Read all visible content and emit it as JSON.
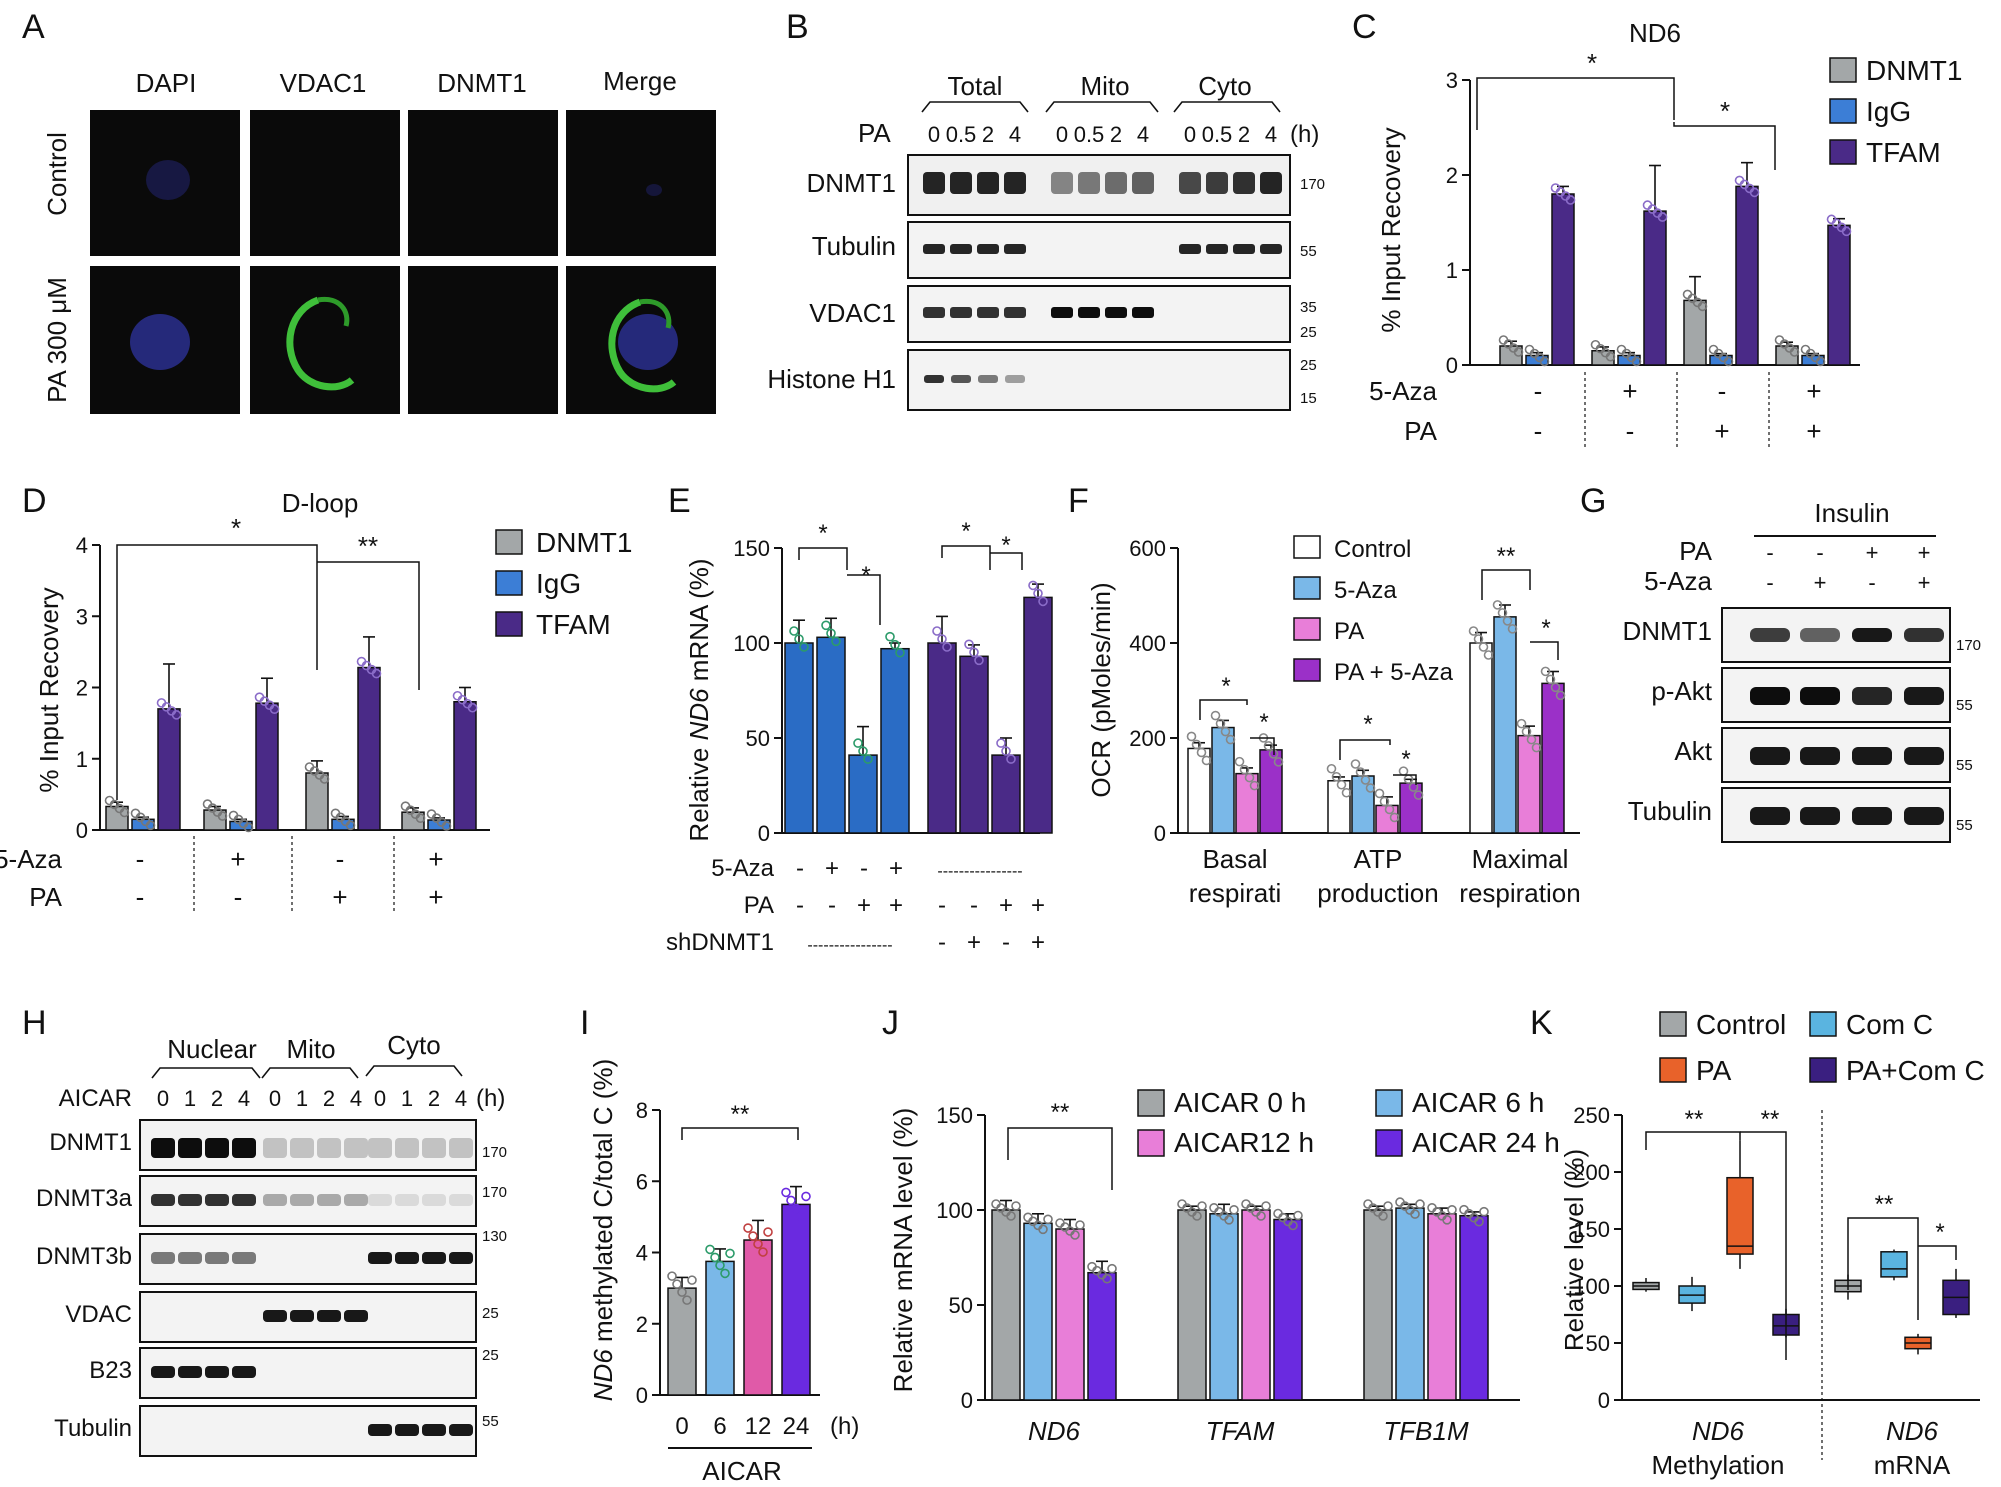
{
  "panels": {
    "A": {
      "label": "A",
      "cols": [
        "DAPI",
        "VDAC1",
        "DNMT1",
        "Merge"
      ],
      "rows": [
        "Control",
        "PA 300 μM"
      ]
    },
    "B": {
      "label": "B",
      "groups": [
        "Total",
        "Mito",
        "Cyto"
      ],
      "pa_label": "PA",
      "time_labels": [
        "0",
        "0.5",
        "2",
        "4"
      ],
      "unit": "(h)",
      "rows": [
        "DNMT1",
        "Tubulin",
        "VDAC1",
        "Histone H1"
      ],
      "markers": [
        "170",
        "55",
        "35",
        "25",
        "25",
        "15"
      ]
    },
    "C": {
      "label": "C",
      "title": "ND6"
    },
    "D": {
      "label": "D",
      "title": "D-loop"
    },
    "E": {
      "label": "E"
    },
    "F": {
      "label": "F"
    },
    "G": {
      "label": "G",
      "header": "Insulin",
      "cond_labels": [
        "PA",
        "5-Aza"
      ],
      "pa_signs": [
        "-",
        "-",
        "+",
        "+"
      ],
      "aza_signs": [
        "-",
        "+",
        "-",
        "+"
      ],
      "rows": [
        "DNMT1",
        "p-Akt",
        "Akt",
        "Tubulin"
      ],
      "markers": [
        "170",
        "55",
        "55",
        "55"
      ]
    },
    "H": {
      "label": "H",
      "groups": [
        "Nuclear",
        "Mito",
        "Cyto"
      ],
      "aicar_label": "AICAR",
      "time_labels": [
        "0",
        "1",
        "2",
        "4"
      ],
      "unit": "(h)",
      "rows": [
        "DNMT1",
        "DNMT3a",
        "DNMT3b",
        "VDAC",
        "B23",
        "Tubulin"
      ],
      "markers": [
        "170",
        "170",
        "130",
        "25",
        "25",
        "55"
      ]
    },
    "I": {
      "label": "I"
    },
    "J": {
      "label": "J"
    },
    "K": {
      "label": "K"
    }
  },
  "common": {
    "aza": "5-Aza",
    "pa": "PA",
    "shdnmt1": "shDNMT1",
    "star": "*",
    "dstar": "**"
  },
  "chart_data": [
    {
      "panel": "C",
      "type": "bar",
      "title": "ND6",
      "ylabel": "% Input Recovery",
      "ylim": [
        0,
        3
      ],
      "yticks": [
        "0",
        "1",
        "2",
        "3"
      ],
      "conditions": [
        {
          "aza": "-",
          "pa": "-"
        },
        {
          "aza": "+",
          "pa": "-"
        },
        {
          "aza": "-",
          "pa": "+"
        },
        {
          "aza": "+",
          "pa": "+"
        }
      ],
      "series": [
        {
          "name": "DNMT1",
          "color": "#a3a7a8",
          "values": [
            0.2,
            0.15,
            0.68,
            0.2
          ],
          "errors": [
            0.05,
            0.04,
            0.25,
            0.04
          ]
        },
        {
          "name": "IgG",
          "color": "#3c7ed6",
          "values": [
            0.1,
            0.1,
            0.1,
            0.1
          ],
          "errors": [
            0.03,
            0.03,
            0.02,
            0.02
          ]
        },
        {
          "name": "TFAM",
          "color": "#4a2a87",
          "values": [
            1.8,
            1.62,
            1.88,
            1.47
          ],
          "errors": [
            0.08,
            0.48,
            0.25,
            0.07
          ]
        }
      ],
      "significance": [
        "*",
        "*"
      ]
    },
    {
      "panel": "D",
      "type": "bar",
      "title": "D-loop",
      "ylabel": "% Input Recovery",
      "ylim": [
        0,
        4
      ],
      "yticks": [
        "0",
        "1",
        "2",
        "3",
        "4"
      ],
      "conditions": [
        {
          "aza": "-",
          "pa": "-"
        },
        {
          "aza": "+",
          "pa": "-"
        },
        {
          "aza": "-",
          "pa": "+"
        },
        {
          "aza": "+",
          "pa": "+"
        }
      ],
      "series": [
        {
          "name": "DNMT1",
          "color": "#a3a7a8",
          "values": [
            0.33,
            0.28,
            0.8,
            0.25
          ],
          "errors": [
            0.06,
            0.05,
            0.17,
            0.06
          ]
        },
        {
          "name": "IgG",
          "color": "#3c7ed6",
          "values": [
            0.15,
            0.12,
            0.15,
            0.14
          ],
          "errors": [
            0.03,
            0.03,
            0.04,
            0.03
          ]
        },
        {
          "name": "TFAM",
          "color": "#4a2a87",
          "values": [
            1.7,
            1.78,
            2.28,
            1.8
          ],
          "errors": [
            0.63,
            0.35,
            0.43,
            0.2
          ]
        }
      ],
      "significance": [
        "*",
        "**"
      ]
    },
    {
      "panel": "E",
      "type": "bar",
      "ylabel_parts": [
        "Relative ",
        "ND6",
        " mRNA (%)"
      ],
      "ylim": [
        0,
        150
      ],
      "yticks": [
        "0",
        "50",
        "100",
        "150"
      ],
      "groups": [
        {
          "color": "#2a6cc5",
          "values": [
            100,
            103,
            41,
            97
          ],
          "errors": [
            12,
            10,
            15,
            3
          ],
          "shDNMT1": "----------------"
        },
        {
          "color": "#4a2a87",
          "values": [
            100,
            93,
            41,
            124
          ],
          "errors": [
            14,
            6,
            9,
            7
          ],
          "shDNMT1": [
            "-",
            "+",
            "-",
            "+"
          ]
        }
      ],
      "aza": [
        "-",
        "+",
        "-",
        "+"
      ],
      "pa": [
        "-",
        "-",
        "+",
        "+"
      ],
      "aza_group2": "----------------",
      "significance": [
        "*",
        "*",
        "*",
        "*"
      ]
    },
    {
      "panel": "F",
      "type": "bar",
      "ylabel": "OCR (pMoles/min)",
      "ylim": [
        0,
        600
      ],
      "yticks": [
        "0",
        "200",
        "400",
        "600"
      ],
      "categories": [
        "Basal respirati",
        "ATP production",
        "Maximal respiration"
      ],
      "category_lines": [
        [
          "Basal",
          "respirati"
        ],
        [
          "ATP",
          "production"
        ],
        [
          "Maximal",
          "respiration"
        ]
      ],
      "series": [
        {
          "name": "Control",
          "color": "#ffffff",
          "values": [
            178,
            110,
            400
          ],
          "errors": [
            12,
            8,
            22
          ]
        },
        {
          "name": "5-Aza",
          "color": "#7ab8e8",
          "values": [
            222,
            120,
            455
          ],
          "errors": [
            15,
            12,
            25
          ]
        },
        {
          "name": "PA",
          "color": "#e87ed8",
          "values": [
            125,
            58,
            205
          ],
          "errors": [
            12,
            18,
            20
          ]
        },
        {
          "name": "PA + 5-Aza",
          "color": "#9b30c8",
          "values": [
            175,
            105,
            315
          ],
          "errors": [
            10,
            8,
            25
          ]
        }
      ],
      "significance": [
        "*",
        "*",
        "*",
        "*",
        "**",
        "*"
      ]
    },
    {
      "panel": "I",
      "type": "bar",
      "ylabel_parts": [
        "ND6",
        " methylated C/total C (%)"
      ],
      "ylim": [
        0,
        8
      ],
      "yticks": [
        "0",
        "2",
        "4",
        "6",
        "8"
      ],
      "categories": [
        "0",
        "6",
        "12",
        "24"
      ],
      "unit": "(h)",
      "xlabel": "AICAR",
      "values": [
        3.0,
        3.75,
        4.35,
        5.35
      ],
      "errors": [
        0.3,
        0.35,
        0.55,
        0.5
      ],
      "colors": [
        "#a3a7a8",
        "#7ab8e8",
        "#e05aa8",
        "#6a2ae0"
      ],
      "significance": "**"
    },
    {
      "panel": "J",
      "type": "bar",
      "ylabel": "Relative mRNA level (%)",
      "ylim": [
        0,
        150
      ],
      "yticks": [
        "0",
        "50",
        "100",
        "150"
      ],
      "categories": [
        "ND6",
        "TFAM",
        "TFB1M"
      ],
      "series": [
        {
          "name": "AICAR 0 h",
          "color": "#a3a7a8",
          "values": [
            100,
            100,
            100
          ],
          "errors": [
            5,
            2,
            2
          ]
        },
        {
          "name": "AICAR  6 h",
          "color": "#7ab8e8",
          "values": [
            93,
            98,
            101
          ],
          "errors": [
            5,
            5,
            2
          ]
        },
        {
          "name": "AICAR12 h",
          "color": "#e87ed8",
          "values": [
            90,
            100,
            98
          ],
          "errors": [
            5,
            2,
            3
          ]
        },
        {
          "name": "AICAR 24 h",
          "color": "#6a2ae0",
          "values": [
            67,
            95,
            97
          ],
          "errors": [
            6,
            3,
            2
          ]
        }
      ],
      "significance": "**"
    },
    {
      "panel": "K",
      "type": "box",
      "ylabel": "Relative level (%)",
      "ylim": [
        0,
        250
      ],
      "yticks": [
        "0",
        "50",
        "100",
        "150",
        "200",
        "250"
      ],
      "categories": [
        "ND6 Methylation",
        "ND6 mRNA"
      ],
      "category_lines": [
        [
          "ND6",
          "Methylation"
        ],
        [
          "ND6",
          "mRNA"
        ]
      ],
      "series": [
        {
          "name": "Control",
          "color": "#a3a7a8",
          "boxes": [
            [
              95,
              97,
              100,
              103,
              107
            ],
            [
              88,
              95,
              100,
              105,
              110
            ]
          ]
        },
        {
          "name": "Com C",
          "color": "#5ab4e0",
          "boxes": [
            [
              78,
              85,
              92,
              100,
              108
            ],
            [
              105,
              108,
              115,
              130,
              132
            ]
          ]
        },
        {
          "name": "PA",
          "color": "#e8622a",
          "boxes": [
            [
              115,
              128,
              135,
              195,
              228
            ],
            [
              40,
              45,
              50,
              55,
              58
            ]
          ]
        },
        {
          "name": "PA+Com C",
          "color": "#3a1f80",
          "boxes": [
            [
              55,
              57,
              65,
              75,
              80
            ],
            [
              72,
              75,
              90,
              105,
              115
            ]
          ]
        }
      ],
      "significance": [
        "**",
        "**",
        "**",
        "*"
      ]
    }
  ]
}
